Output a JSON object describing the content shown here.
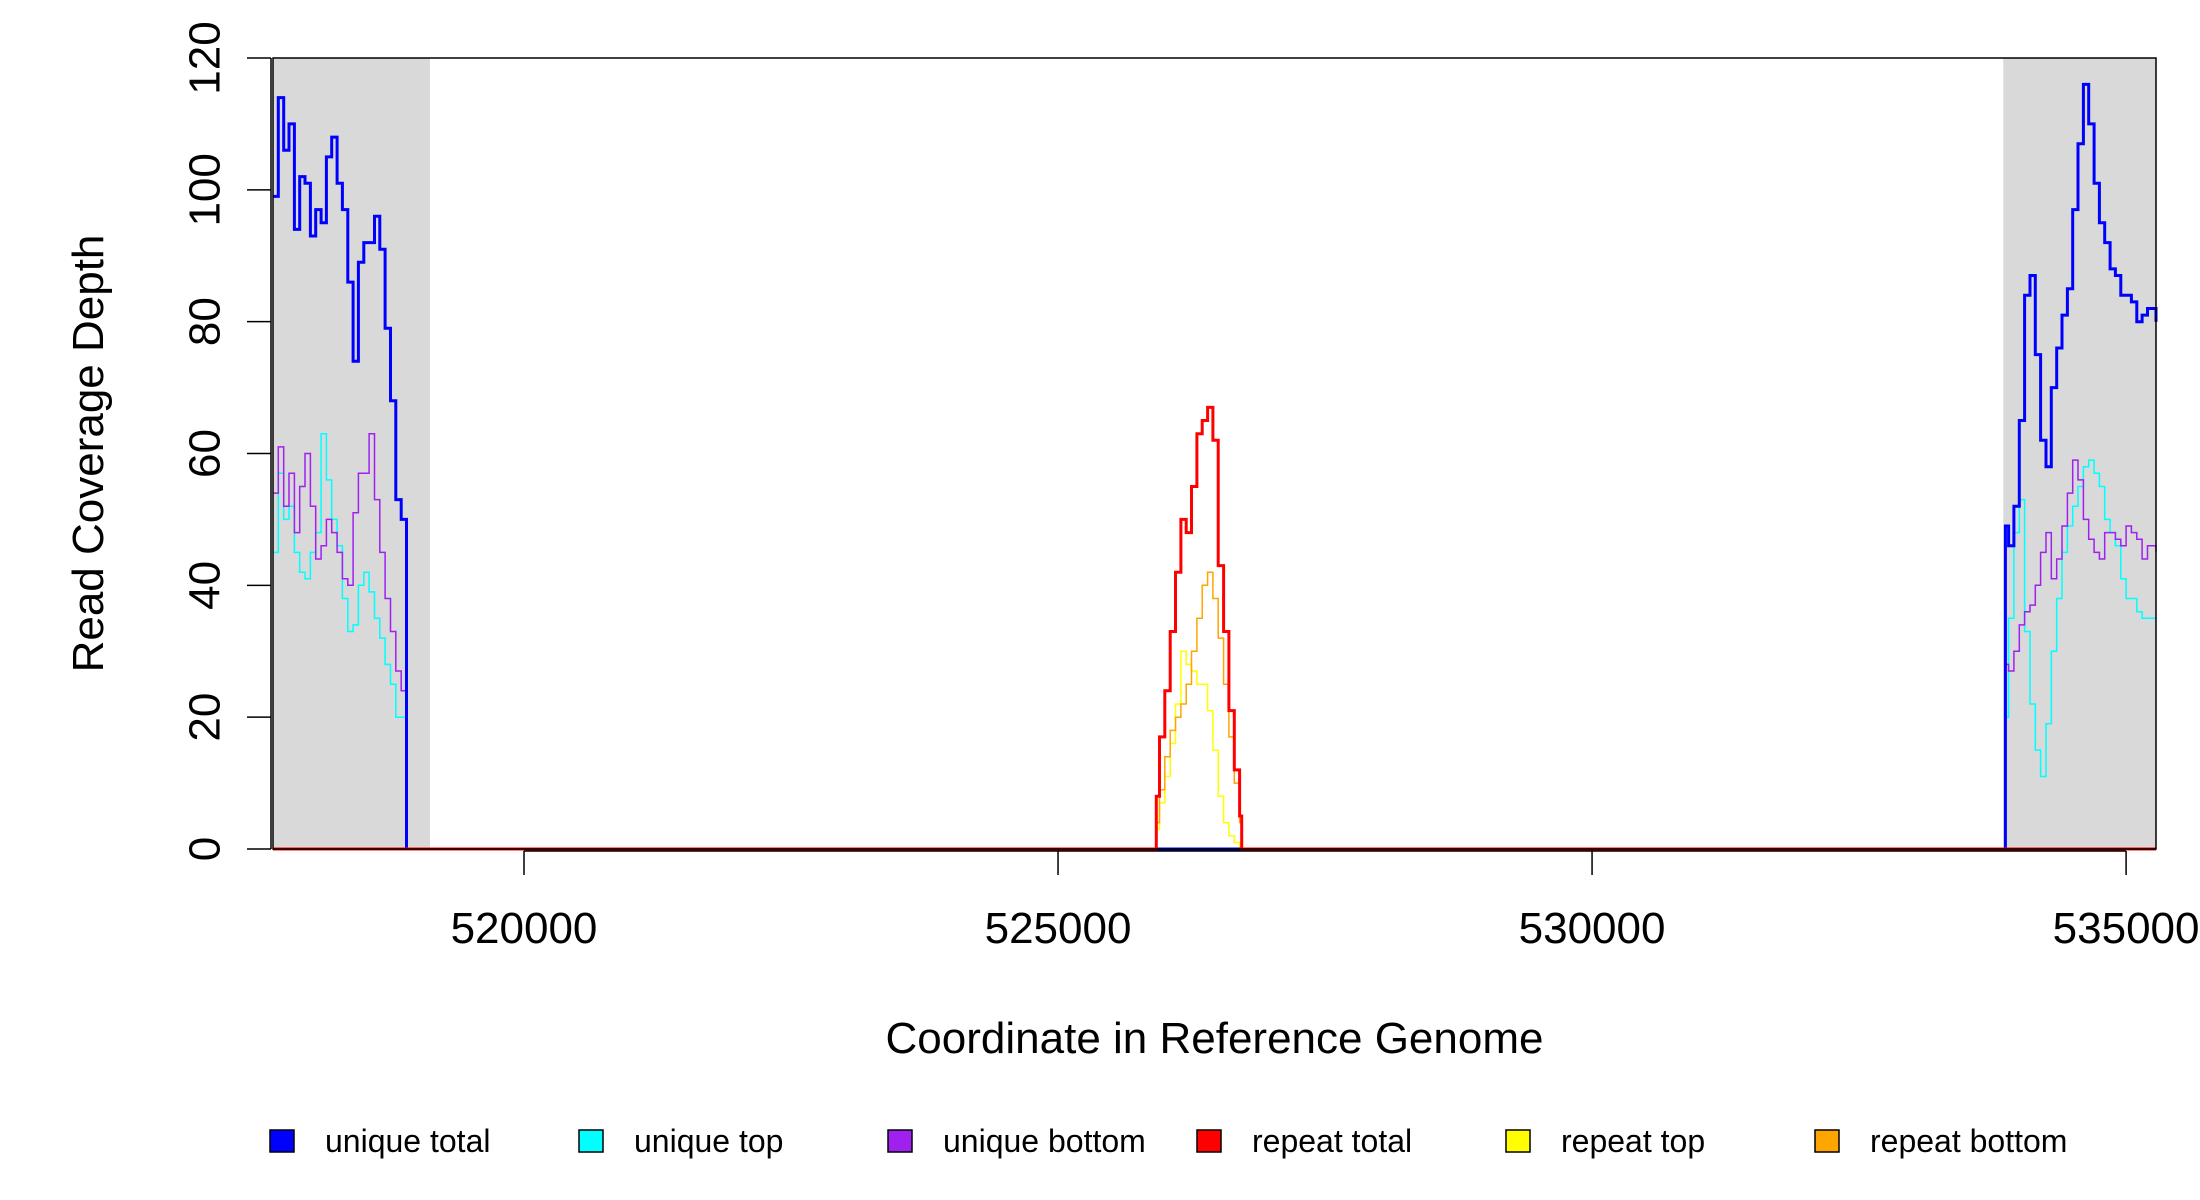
{
  "chart_data": {
    "type": "line",
    "xlabel": "Coordinate in Reference Genome",
    "ylabel": "Read Coverage Depth",
    "xlim": [
      517650,
      535280
    ],
    "ylim": [
      0,
      120
    ],
    "xticks": [
      520000,
      525000,
      530000,
      535000
    ],
    "xtick_labels": [
      "520000",
      "525000",
      "530000",
      "535000"
    ],
    "yticks": [
      0,
      20,
      40,
      60,
      80,
      100,
      120
    ],
    "ytick_labels": [
      "0",
      "20",
      "40",
      "60",
      "80",
      "100",
      "120"
    ],
    "grid": false,
    "legend_position": "bottom",
    "shaded_regions": [
      [
        517650,
        519120
      ],
      [
        533850,
        535280
      ]
    ],
    "shade_color": "#d9d9d9",
    "series": [
      {
        "name": "unique total",
        "color": "#0000ff",
        "line_width": 3,
        "x": [
          517650,
          517700,
          517750,
          517800,
          517850,
          517900,
          517950,
          518000,
          518050,
          518100,
          518150,
          518200,
          518250,
          518300,
          518350,
          518400,
          518450,
          518500,
          518550,
          518600,
          518650,
          518700,
          518750,
          518800,
          518850,
          518900,
          518950,
          519000,
          519050,
          519100,
          519120,
          519140,
          533850,
          533870,
          533900,
          533950,
          534000,
          534050,
          534100,
          534150,
          534200,
          534250,
          534300,
          534350,
          534400,
          534450,
          534500,
          534550,
          534600,
          534650,
          534700,
          534750,
          534800,
          534850,
          534900,
          534950,
          535000,
          535050,
          535100,
          535150,
          535200,
          535280
        ],
        "y": [
          99,
          114,
          106,
          110,
          94,
          102,
          101,
          93,
          97,
          95,
          105,
          108,
          101,
          97,
          86,
          74,
          89,
          92,
          92,
          96,
          91,
          79,
          68,
          53,
          50,
          0,
          0,
          0,
          0,
          0,
          0,
          0,
          0,
          49,
          46,
          52,
          65,
          84,
          87,
          75,
          62,
          58,
          70,
          76,
          81,
          85,
          97,
          107,
          116,
          110,
          101,
          95,
          92,
          88,
          87,
          84,
          84,
          83,
          80,
          81,
          82,
          80
        ]
      },
      {
        "name": "unique top",
        "color": "#00ffff",
        "line_width": 1.5,
        "x": [
          517650,
          517700,
          517750,
          517800,
          517850,
          517900,
          517950,
          518000,
          518050,
          518100,
          518150,
          518200,
          518250,
          518300,
          518350,
          518400,
          518450,
          518500,
          518550,
          518600,
          518650,
          518700,
          518750,
          518800,
          518850,
          518900,
          518950,
          519000,
          519050,
          519100,
          519120,
          519140,
          533850,
          533870,
          533900,
          533950,
          534000,
          534050,
          534100,
          534150,
          534200,
          534250,
          534300,
          534350,
          534400,
          534450,
          534500,
          534550,
          534600,
          534650,
          534700,
          534750,
          534800,
          534850,
          534900,
          534950,
          535000,
          535050,
          535100,
          535150,
          535200,
          535280
        ],
        "y": [
          45,
          57,
          50,
          52,
          45,
          42,
          41,
          45,
          48,
          63,
          56,
          50,
          46,
          38,
          33,
          34,
          40,
          42,
          39,
          35,
          32,
          28,
          25,
          20,
          20,
          0,
          0,
          0,
          0,
          0,
          0,
          0,
          0,
          20,
          35,
          48,
          53,
          33,
          22,
          15,
          11,
          19,
          30,
          38,
          45,
          49,
          52,
          55,
          58,
          59,
          57,
          55,
          50,
          48,
          46,
          41,
          38,
          38,
          36,
          35,
          35,
          35
        ]
      },
      {
        "name": "unique bottom",
        "color": "#a020f0",
        "line_width": 1.5,
        "x": [
          517650,
          517700,
          517750,
          517800,
          517850,
          517900,
          517950,
          518000,
          518050,
          518100,
          518150,
          518200,
          518250,
          518300,
          518350,
          518400,
          518450,
          518500,
          518550,
          518600,
          518650,
          518700,
          518750,
          518800,
          518850,
          518900,
          518950,
          519000,
          519050,
          519100,
          519120,
          519140,
          533850,
          533870,
          533900,
          533950,
          534000,
          534050,
          534100,
          534150,
          534200,
          534250,
          534300,
          534350,
          534400,
          534450,
          534500,
          534550,
          534600,
          534650,
          534700,
          534750,
          534800,
          534850,
          534900,
          534950,
          535000,
          535050,
          535100,
          535150,
          535200,
          535280
        ],
        "y": [
          54,
          61,
          52,
          57,
          48,
          55,
          60,
          52,
          44,
          46,
          50,
          48,
          45,
          41,
          40,
          51,
          57,
          57,
          63,
          53,
          45,
          38,
          33,
          27,
          24,
          0,
          0,
          0,
          0,
          0,
          0,
          0,
          0,
          28,
          27,
          30,
          34,
          36,
          37,
          40,
          45,
          48,
          41,
          44,
          49,
          54,
          59,
          56,
          50,
          47,
          45,
          44,
          48,
          48,
          47,
          46,
          49,
          48,
          47,
          44,
          46,
          45
        ]
      },
      {
        "name": "repeat total",
        "color": "#ff0000",
        "line_width": 3,
        "x": [
          517650,
          525900,
          525920,
          525950,
          526000,
          526050,
          526100,
          526150,
          526200,
          526250,
          526300,
          526350,
          526400,
          526450,
          526500,
          526550,
          526600,
          526650,
          526700,
          526720,
          526750,
          535280
        ],
        "y": [
          0,
          0,
          8,
          17,
          24,
          33,
          42,
          50,
          48,
          55,
          63,
          65,
          67,
          62,
          43,
          33,
          21,
          12,
          5,
          0,
          0,
          0
        ]
      },
      {
        "name": "repeat top",
        "color": "#ffff00",
        "line_width": 1.5,
        "x": [
          517650,
          525900,
          525920,
          525950,
          526000,
          526050,
          526100,
          526150,
          526200,
          526250,
          526300,
          526350,
          526400,
          526450,
          526500,
          526550,
          526600,
          526650,
          526700,
          526720,
          526750,
          535280
        ],
        "y": [
          0,
          0,
          3,
          7,
          11,
          16,
          22,
          30,
          28,
          27,
          25,
          25,
          21,
          15,
          8,
          4,
          2,
          1,
          0,
          0,
          0,
          0
        ]
      },
      {
        "name": "repeat bottom",
        "color": "#ffa500",
        "line_width": 1.5,
        "x": [
          517650,
          525900,
          525920,
          525950,
          526000,
          526050,
          526100,
          526150,
          526200,
          526250,
          526300,
          526350,
          526400,
          526450,
          526500,
          526550,
          526600,
          526650,
          526700,
          526720,
          526750,
          535280
        ],
        "y": [
          0,
          0,
          4,
          9,
          14,
          18,
          20,
          22,
          25,
          30,
          35,
          40,
          42,
          38,
          32,
          25,
          17,
          10,
          4,
          0,
          0,
          0
        ]
      }
    ]
  }
}
